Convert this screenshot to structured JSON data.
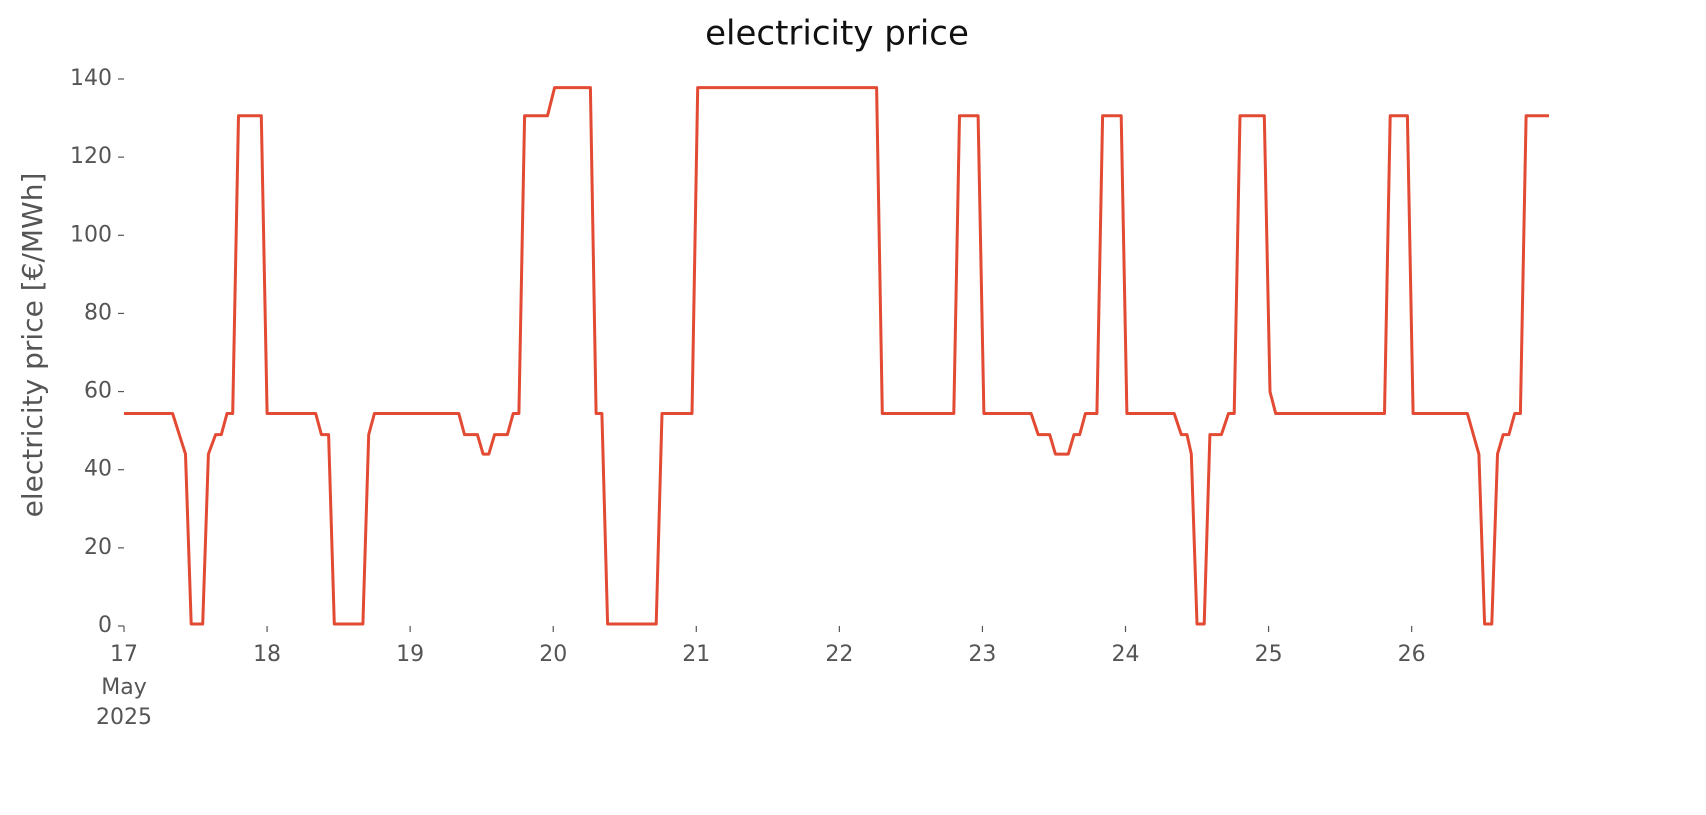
{
  "chart_data": {
    "type": "line",
    "title": "electricity price",
    "y_label": "electricity price [€/MWh]",
    "x_sublabels": [
      "May",
      "2025"
    ],
    "x": [
      17.0,
      17.34,
      17.43,
      17.47,
      17.55,
      17.59,
      17.64,
      17.68,
      17.72,
      17.76,
      17.8,
      17.96,
      18.0,
      18.34,
      18.38,
      18.43,
      18.47,
      18.67,
      18.71,
      18.75,
      19.34,
      19.38,
      19.47,
      19.51,
      19.55,
      19.59,
      19.68,
      19.72,
      19.76,
      19.8,
      19.96,
      20.01,
      20.26,
      20.3,
      20.34,
      20.38,
      20.72,
      20.76,
      20.97,
      21.01,
      22.26,
      22.3,
      22.8,
      22.84,
      22.97,
      23.01,
      23.34,
      23.39,
      23.47,
      23.51,
      23.6,
      23.64,
      23.68,
      23.72,
      23.8,
      23.84,
      23.97,
      24.01,
      24.34,
      24.39,
      24.43,
      24.46,
      24.5,
      24.55,
      24.59,
      24.67,
      24.72,
      24.76,
      24.8,
      24.97,
      25.01,
      25.05,
      25.81,
      25.85,
      25.97,
      26.01,
      26.39,
      26.47,
      26.51,
      26.56,
      26.6,
      26.64,
      26.68,
      26.72,
      26.76,
      26.8,
      26.96
    ],
    "series": [
      {
        "name": "electricity price",
        "color": "#e24a33",
        "values": [
          54.4,
          54.4,
          44,
          0.5,
          0.5,
          44,
          49,
          49,
          54.4,
          54.4,
          130.6,
          130.6,
          54.4,
          54.4,
          49,
          49,
          0.5,
          0.5,
          49,
          54.4,
          54.4,
          49,
          49,
          44,
          44,
          49,
          49,
          54.4,
          54.4,
          130.6,
          130.6,
          137.8,
          137.8,
          54.4,
          54.4,
          0.5,
          0.5,
          54.4,
          54.4,
          137.8,
          137.8,
          54.4,
          54.4,
          130.6,
          130.6,
          54.4,
          54.4,
          49,
          49,
          44,
          44,
          49,
          49,
          54.4,
          54.4,
          130.6,
          130.6,
          54.4,
          54.4,
          49,
          49,
          44,
          0.5,
          0.5,
          49,
          49,
          54.4,
          54.4,
          130.6,
          130.6,
          60,
          54.4,
          54.4,
          130.6,
          130.6,
          54.4,
          54.4,
          44,
          0.5,
          0.5,
          44,
          49,
          49,
          54.4,
          54.4,
          130.6,
          130.6
        ]
      }
    ],
    "xlim": [
      17,
      26.96
    ],
    "xticks": [
      17,
      18,
      19,
      20,
      21,
      22,
      23,
      24,
      25,
      26
    ],
    "ylim": [
      0,
      140
    ],
    "yticks": [
      0,
      20,
      40,
      60,
      80,
      100,
      120,
      140
    ],
    "grid": false
  }
}
